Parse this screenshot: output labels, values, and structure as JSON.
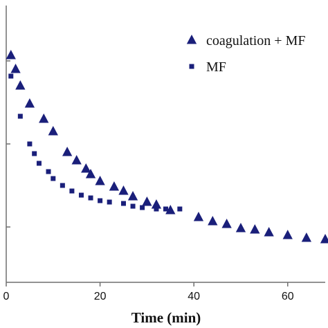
{
  "chart_data": {
    "type": "scatter",
    "title": "",
    "xlabel": "Time (min)",
    "ylabel": "",
    "xlim": [
      0,
      68
    ],
    "ylim": [
      0,
      1
    ],
    "x_ticks": [
      0,
      20,
      40,
      60
    ],
    "y_ticks": [
      0.2,
      0.5,
      0.8
    ],
    "legend_position": "top-right",
    "series": [
      {
        "name": "coagulation + MF",
        "marker": "triangle",
        "color": "#1a1f7a",
        "points": [
          [
            1,
            0.82
          ],
          [
            2,
            0.77
          ],
          [
            3,
            0.71
          ],
          [
            5,
            0.645
          ],
          [
            8,
            0.59
          ],
          [
            10,
            0.545
          ],
          [
            13,
            0.47
          ],
          [
            15,
            0.44
          ],
          [
            17,
            0.41
          ],
          [
            18,
            0.39
          ],
          [
            20,
            0.365
          ],
          [
            23,
            0.345
          ],
          [
            25,
            0.33
          ],
          [
            27,
            0.31
          ],
          [
            30,
            0.29
          ],
          [
            32,
            0.28
          ],
          [
            35,
            0.26
          ],
          [
            41,
            0.235
          ],
          [
            44,
            0.22
          ],
          [
            47,
            0.21
          ],
          [
            50,
            0.195
          ],
          [
            53,
            0.19
          ],
          [
            56,
            0.18
          ],
          [
            60,
            0.17
          ],
          [
            64,
            0.16
          ],
          [
            68,
            0.155
          ]
        ]
      },
      {
        "name": "MF",
        "marker": "square",
        "color": "#1a1f7a",
        "points": [
          [
            1,
            0.745
          ],
          [
            3,
            0.6
          ],
          [
            5,
            0.5
          ],
          [
            6,
            0.465
          ],
          [
            7,
            0.43
          ],
          [
            9,
            0.4
          ],
          [
            10,
            0.375
          ],
          [
            12,
            0.35
          ],
          [
            14,
            0.33
          ],
          [
            16,
            0.315
          ],
          [
            18,
            0.305
          ],
          [
            20,
            0.295
          ],
          [
            22,
            0.29
          ],
          [
            25,
            0.285
          ],
          [
            27,
            0.275
          ],
          [
            29,
            0.27
          ],
          [
            32,
            0.265
          ],
          [
            34,
            0.265
          ],
          [
            37,
            0.265
          ]
        ]
      }
    ]
  }
}
